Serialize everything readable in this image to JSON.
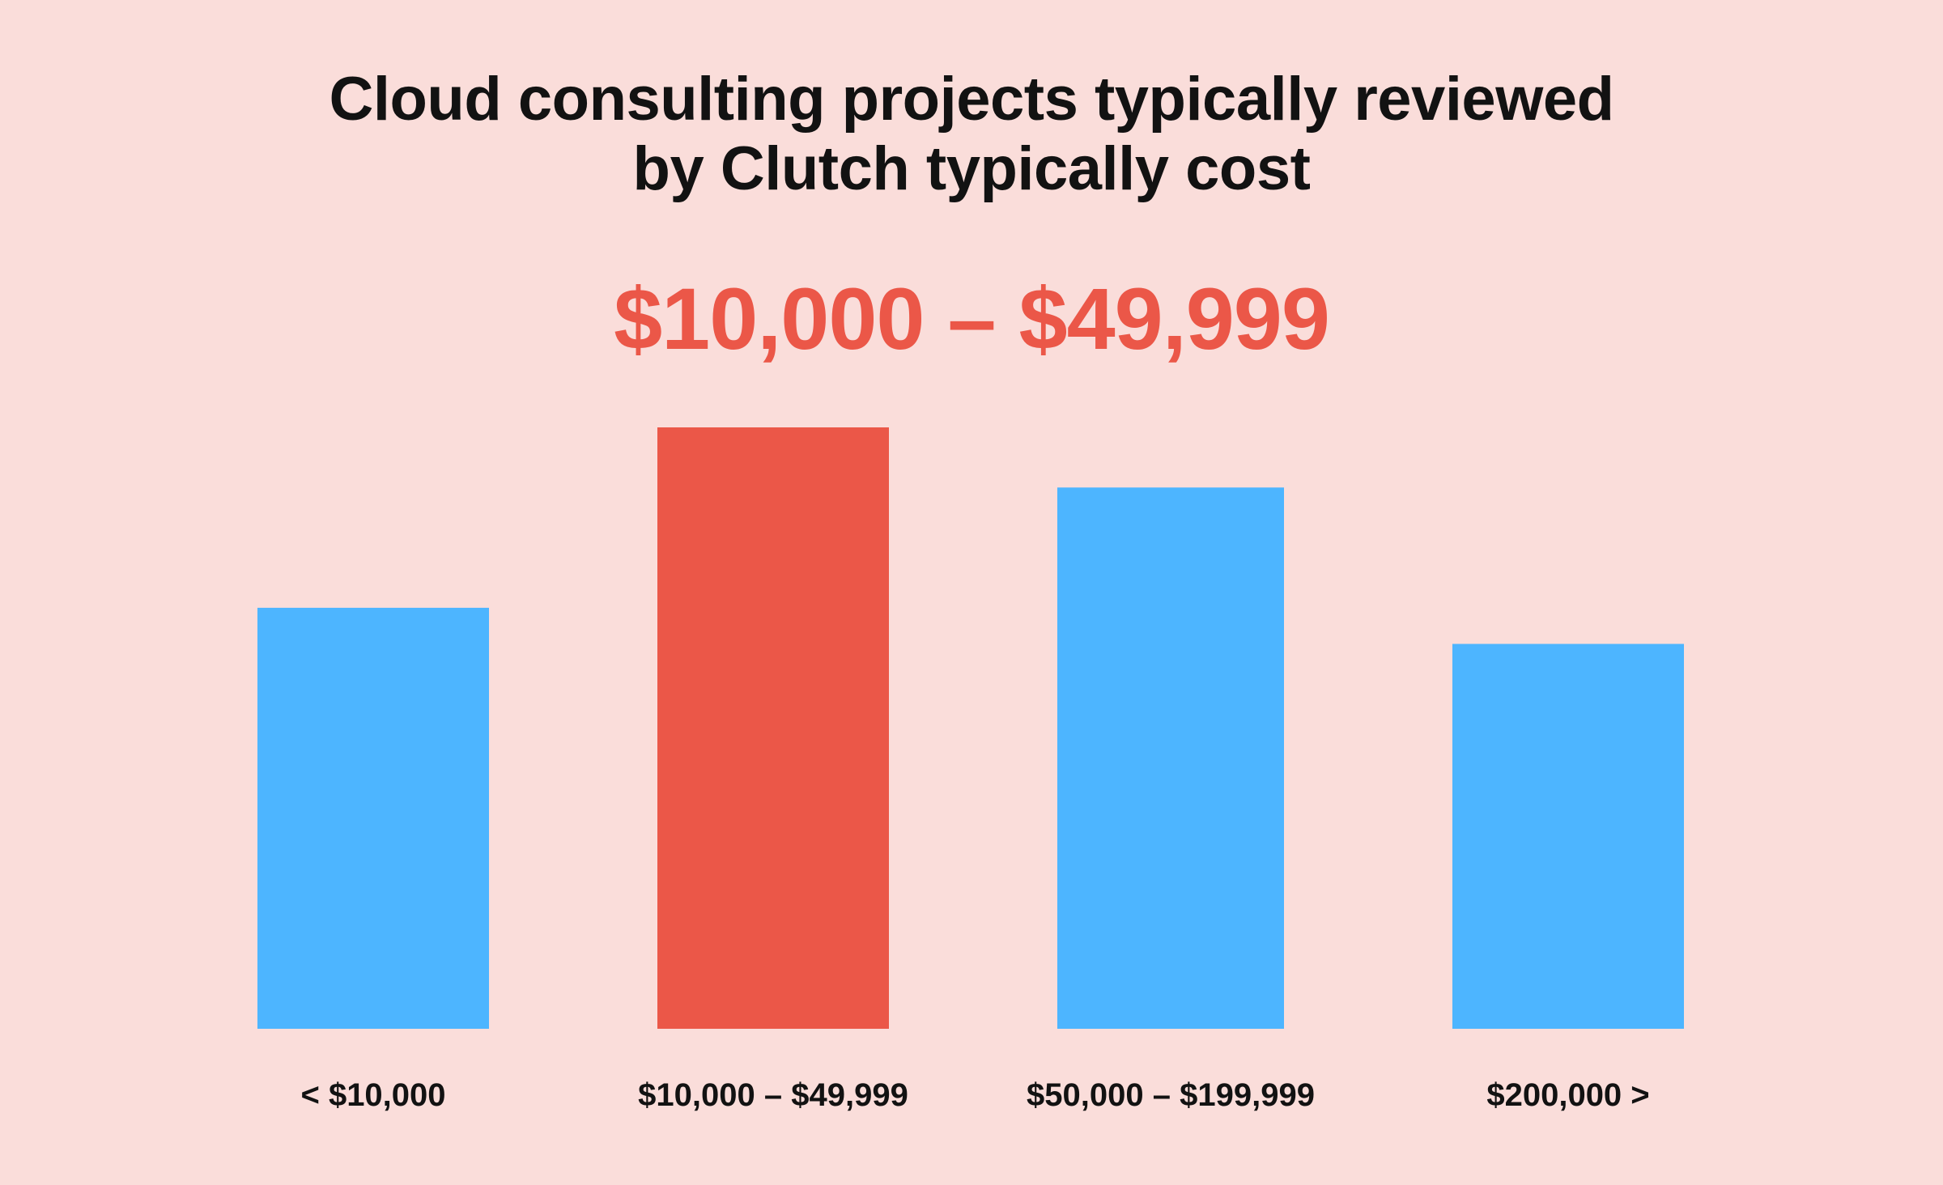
{
  "chart_data": {
    "type": "bar",
    "title_lines": [
      "Cloud consulting projects typically reviewed",
      "by Clutch typically cost"
    ],
    "highlight_label": "$10,000 – $49,999",
    "categories": [
      "< $10,000",
      "$10,000 – $49,999",
      "$50,000 – $199,999",
      "$200,000 >"
    ],
    "values": [
      70,
      100,
      90,
      64
    ],
    "highlight_index": 1,
    "ylim": [
      0,
      100
    ],
    "grid": false,
    "xlabel": "",
    "ylabel": ""
  },
  "colors": {
    "background": "#FADDDA",
    "bar": "#4DB5FF",
    "highlight": "#EB5748",
    "text": "#121212"
  }
}
